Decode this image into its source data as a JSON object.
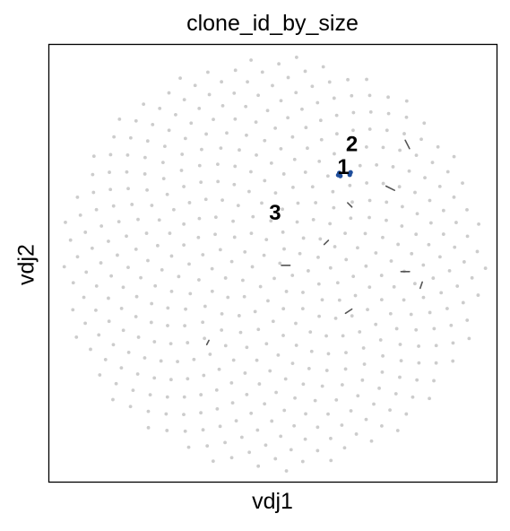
{
  "chart_data": {
    "type": "scatter",
    "title": "clone_id_by_size",
    "xlabel": "vdj1",
    "ylabel": "vdj2",
    "ticks_shown": false,
    "grid": false,
    "legend": "none",
    "xlim": [
      -1.05,
      1.05
    ],
    "ylim": [
      -1.05,
      1.05
    ],
    "background_layout": "sunflower",
    "background_count": 470,
    "background_color": "#cccccc",
    "cluster_labels": [
      {
        "text": "1",
        "x": 0.33,
        "y": 0.46
      },
      {
        "text": "2",
        "x": 0.37,
        "y": 0.57
      },
      {
        "text": "3",
        "x": 0.01,
        "y": 0.24
      }
    ],
    "highlighted_points": [
      {
        "x": 0.306,
        "y": 0.423,
        "color": "#1f4e9c"
      },
      {
        "x": 0.316,
        "y": 0.419,
        "color": "#1f4e9c"
      },
      {
        "x": 0.311,
        "y": 0.433,
        "color": "#1f4e9c"
      },
      {
        "x": 0.36,
        "y": 0.425,
        "color": "#1f4e9c"
      },
      {
        "x": 0.364,
        "y": 0.436,
        "color": "#1f4e9c"
      }
    ],
    "edges": [
      {
        "x1": 0.62,
        "y1": 0.59,
        "x2": 0.64,
        "y2": 0.55
      },
      {
        "x1": 0.53,
        "y1": 0.37,
        "x2": 0.57,
        "y2": 0.35
      },
      {
        "x1": 0.35,
        "y1": 0.29,
        "x2": 0.37,
        "y2": 0.27
      },
      {
        "x1": 0.24,
        "y1": 0.09,
        "x2": 0.26,
        "y2": 0.11
      },
      {
        "x1": 0.04,
        "y1": -0.01,
        "x2": 0.08,
        "y2": -0.01
      },
      {
        "x1": 0.6,
        "y1": -0.04,
        "x2": 0.64,
        "y2": -0.04
      },
      {
        "x1": 0.69,
        "y1": -0.12,
        "x2": 0.7,
        "y2": -0.09
      },
      {
        "x1": 0.34,
        "y1": -0.24,
        "x2": 0.37,
        "y2": -0.22
      },
      {
        "x1": -0.31,
        "y1": -0.39,
        "x2": -0.3,
        "y2": -0.37
      }
    ]
  }
}
